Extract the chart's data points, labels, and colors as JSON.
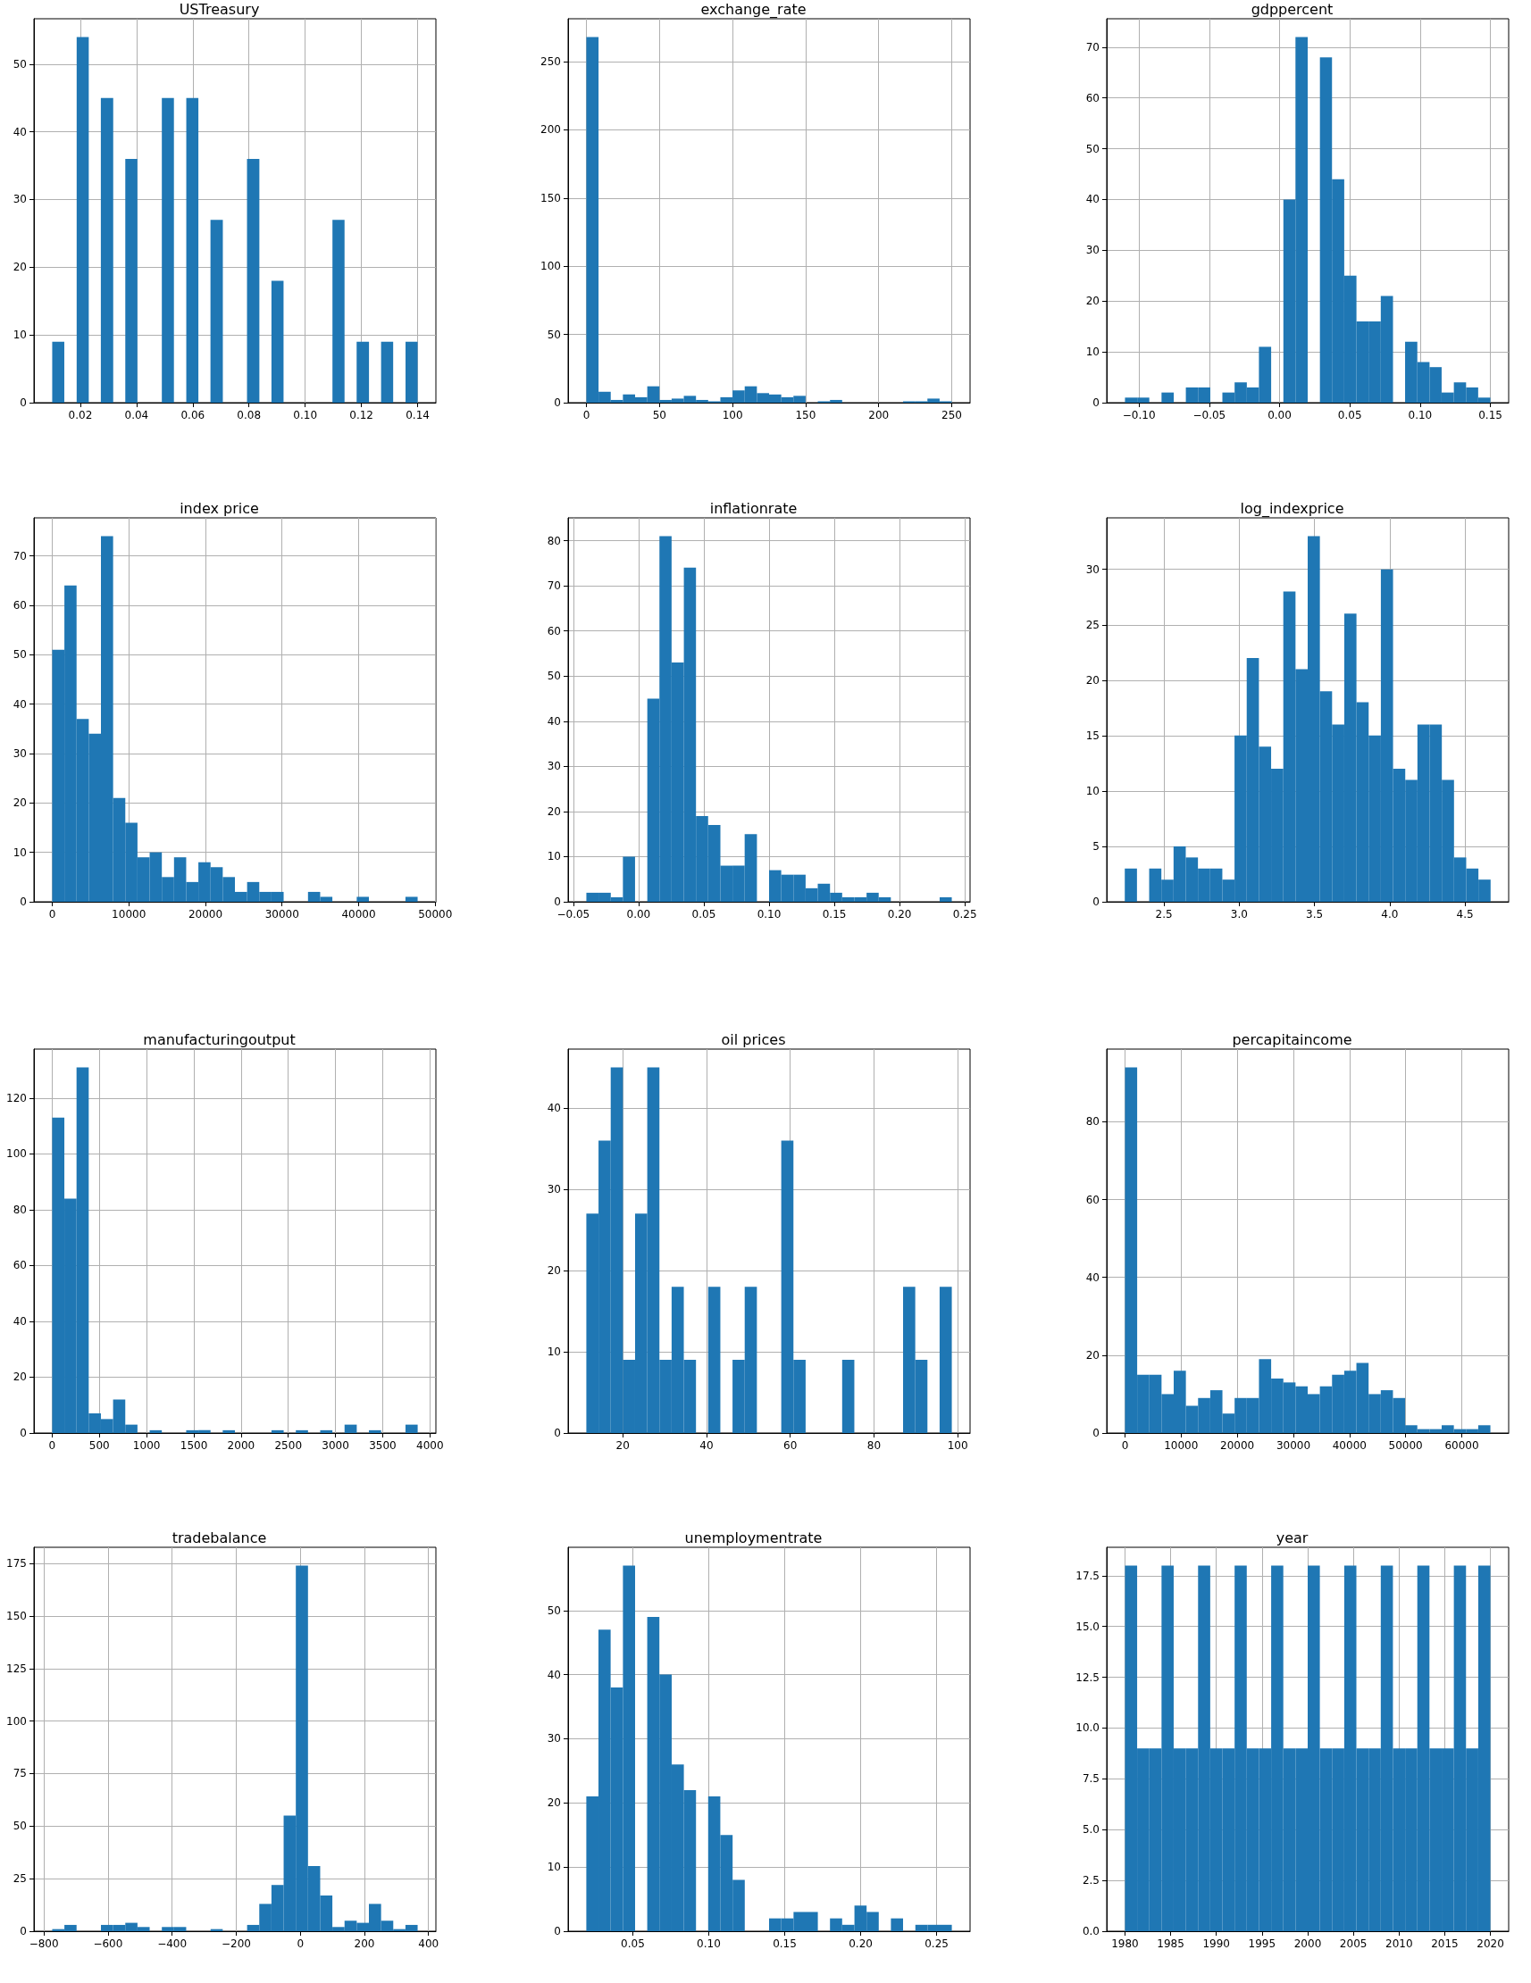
{
  "chart_data": [
    {
      "type": "histogram",
      "title": "USTreasury",
      "color": "#1f77b4",
      "grid": true,
      "bins": [
        0.01,
        0.0143,
        0.0187,
        0.023,
        0.0273,
        0.0317,
        0.036,
        0.0403,
        0.0447,
        0.049,
        0.0533,
        0.0577,
        0.062,
        0.0663,
        0.0707,
        0.075,
        0.0793,
        0.0837,
        0.088,
        0.0923,
        0.0967,
        0.101,
        0.1053,
        0.1097,
        0.114,
        0.1183,
        0.1227,
        0.127,
        0.1313,
        0.1357,
        0.14
      ],
      "values": [
        9,
        0,
        54,
        0,
        45,
        0,
        36,
        0,
        0,
        45,
        0,
        45,
        0,
        27,
        0,
        0,
        36,
        0,
        18,
        0,
        0,
        0,
        0,
        27,
        0,
        9,
        0,
        9,
        0,
        9
      ],
      "xlim": [
        0.0035,
        0.1465
      ],
      "xticks": [
        0.02,
        0.04,
        0.06,
        0.08,
        {
          "value": 0.1,
          "label": "0.10"
        },
        0.12,
        0.14
      ],
      "ylim": [
        0,
        56.7
      ],
      "yticks": [
        0,
        10,
        20,
        30,
        40,
        50
      ]
    },
    {
      "type": "histogram",
      "title": "exchange_rate",
      "color": "#1f77b4",
      "grid": true,
      "bins": [
        0,
        8.33,
        16.67,
        25,
        33.33,
        41.67,
        50,
        58.33,
        66.67,
        75,
        83.33,
        91.67,
        100,
        108.33,
        116.67,
        125,
        133.33,
        141.67,
        150,
        158.33,
        166.67,
        175,
        183.33,
        191.67,
        200,
        208.33,
        216.67,
        225,
        233.33,
        241.67,
        250
      ],
      "values": [
        268,
        8,
        2,
        6,
        4,
        12,
        2,
        3,
        5,
        2,
        1,
        4,
        9,
        12,
        7,
        6,
        4,
        5,
        0,
        1,
        2,
        0,
        0,
        0,
        0,
        0,
        1,
        1,
        3,
        1
      ],
      "xlim": [
        -12.5,
        262.5
      ],
      "xticks": [
        0,
        50,
        100,
        150,
        200,
        250
      ],
      "ylim": [
        0,
        281.4
      ],
      "yticks": [
        0,
        50,
        100,
        150,
        200,
        250
      ]
    },
    {
      "type": "histogram",
      "title": "gdppercent",
      "color": "#1f77b4",
      "grid": true,
      "bins": [
        -0.11,
        -0.1013,
        -0.0927,
        -0.084,
        -0.0753,
        -0.0667,
        -0.058,
        -0.0493,
        -0.0407,
        -0.032,
        -0.0233,
        -0.0147,
        -0.006,
        0.0027,
        0.0113,
        0.02,
        0.0287,
        0.0373,
        0.046,
        0.0547,
        0.0633,
        0.072,
        0.0807,
        0.0893,
        0.098,
        0.1067,
        0.1153,
        0.124,
        0.1327,
        0.1413,
        0.15
      ],
      "values": [
        1,
        1,
        0,
        2,
        0,
        3,
        3,
        0,
        2,
        4,
        3,
        11,
        0,
        40,
        72,
        0,
        68,
        44,
        25,
        16,
        16,
        21,
        0,
        12,
        8,
        7,
        2,
        4,
        3,
        1
      ],
      "xlim": [
        -0.123,
        0.163
      ],
      "xticks": [
        {
          "value": -0.1,
          "label": "−0.10"
        },
        {
          "value": -0.05,
          "label": "−0.05"
        },
        {
          "value": 0,
          "label": "0.00"
        },
        0.05,
        {
          "value": 0.1,
          "label": "0.10"
        },
        0.15
      ],
      "ylim": [
        0,
        75.6
      ],
      "yticks": [
        0,
        10,
        20,
        30,
        40,
        50,
        60,
        70
      ]
    },
    {
      "type": "histogram",
      "title": "index price",
      "color": "#1f77b4",
      "grid": true,
      "bins": [
        0,
        1590,
        3180,
        4770,
        6360,
        7950,
        9540,
        11130,
        12720,
        14310,
        15900,
        17490,
        19080,
        20670,
        22260,
        23850,
        25440,
        27030,
        28620,
        30210,
        31800,
        33390,
        34980,
        36570,
        38160,
        39750,
        41340,
        42930,
        44520,
        46110,
        47700
      ],
      "values": [
        51,
        64,
        37,
        34,
        74,
        21,
        16,
        9,
        10,
        5,
        9,
        4,
        8,
        7,
        5,
        2,
        4,
        2,
        2,
        0,
        0,
        2,
        1,
        0,
        0,
        1,
        0,
        0,
        0,
        1
      ],
      "xlim": [
        -2385,
        50085
      ],
      "xticks": [
        0,
        10000,
        20000,
        30000,
        40000,
        50000
      ],
      "ylim": [
        0,
        77.7
      ],
      "yticks": [
        0,
        10,
        20,
        30,
        40,
        50,
        60,
        70
      ]
    },
    {
      "type": "histogram",
      "title": "inflationrate",
      "color": "#1f77b4",
      "grid": true,
      "bins": [
        -0.04,
        -0.0307,
        -0.0213,
        -0.012,
        -0.0027,
        0.0067,
        0.016,
        0.0253,
        0.0347,
        0.044,
        0.0533,
        0.0627,
        0.072,
        0.0813,
        0.0907,
        0.1,
        0.1093,
        0.1187,
        0.128,
        0.1373,
        0.1467,
        0.156,
        0.1653,
        0.1747,
        0.184,
        0.1933,
        0.2027,
        0.212,
        0.2213,
        0.2307,
        0.24
      ],
      "values": [
        2,
        2,
        1,
        10,
        0,
        45,
        81,
        53,
        74,
        19,
        17,
        8,
        8,
        15,
        0,
        7,
        6,
        6,
        3,
        4,
        2,
        1,
        1,
        2,
        1,
        0,
        0,
        0,
        0,
        1
      ],
      "xlim": [
        -0.054,
        0.254
      ],
      "xticks": [
        {
          "value": -0.05,
          "label": "−0.05"
        },
        {
          "value": 0,
          "label": "0.00"
        },
        0.05,
        {
          "value": 0.1,
          "label": "0.10"
        },
        0.15,
        {
          "value": 0.2,
          "label": "0.20"
        },
        0.25
      ],
      "ylim": [
        0,
        85.05
      ],
      "yticks": [
        0,
        10,
        20,
        30,
        40,
        50,
        60,
        70,
        80
      ]
    },
    {
      "type": "histogram",
      "title": "log_indexprice",
      "color": "#1f77b4",
      "grid": true,
      "bins": [
        2.24,
        2.321,
        2.402,
        2.483,
        2.564,
        2.645,
        2.726,
        2.807,
        2.888,
        2.969,
        3.05,
        3.131,
        3.212,
        3.293,
        3.374,
        3.455,
        3.536,
        3.617,
        3.698,
        3.779,
        3.86,
        3.941,
        4.022,
        4.103,
        4.184,
        4.265,
        4.346,
        4.427,
        4.508,
        4.589,
        4.67
      ],
      "values": [
        3,
        0,
        3,
        2,
        5,
        4,
        3,
        3,
        2,
        15,
        22,
        14,
        12,
        28,
        21,
        33,
        19,
        16,
        26,
        18,
        15,
        30,
        12,
        11,
        16,
        16,
        11,
        4,
        3,
        2
      ],
      "xlim": [
        2.12,
        4.79
      ],
      "xticks": [
        2.5,
        {
          "value": 3,
          "label": "3.0"
        },
        3.5,
        {
          "value": 4,
          "label": "4.0"
        },
        4.5
      ],
      "ylim": [
        0,
        34.65
      ],
      "yticks": [
        0,
        5,
        10,
        15,
        20,
        25,
        30
      ]
    },
    {
      "type": "histogram",
      "title": "manufacturingoutput",
      "color": "#1f77b4",
      "grid": true,
      "bins": [
        0,
        129,
        258,
        387,
        516,
        645,
        774,
        903,
        1032,
        1161,
        1290,
        1419,
        1548,
        1677,
        1806,
        1935,
        2064,
        2193,
        2322,
        2451,
        2580,
        2709,
        2838,
        2967,
        3096,
        3225,
        3354,
        3483,
        3612,
        3741,
        3870
      ],
      "values": [
        113,
        84,
        131,
        7,
        5,
        12,
        3,
        0,
        1,
        0,
        0,
        1,
        1,
        0,
        1,
        0,
        0,
        0,
        1,
        0,
        1,
        0,
        1,
        0,
        3,
        0,
        1,
        0,
        0,
        3
      ],
      "xlim": [
        -193,
        4063
      ],
      "xticks": [
        0,
        500,
        1000,
        1500,
        2000,
        2500,
        3000,
        3500,
        4000
      ],
      "ylim": [
        0,
        137.55
      ],
      "yticks": [
        0,
        20,
        40,
        60,
        80,
        100,
        120
      ]
    },
    {
      "type": "histogram",
      "title": "oil prices",
      "color": "#1f77b4",
      "grid": true,
      "bins": [
        11.3,
        14.21,
        17.12,
        20.03,
        22.94,
        25.85,
        28.76,
        31.67,
        34.58,
        37.49,
        40.4,
        43.31,
        46.22,
        49.13,
        52.04,
        54.95,
        57.86,
        60.77,
        63.68,
        66.59,
        69.5,
        72.41,
        75.32,
        78.23,
        81.14,
        84.05,
        86.96,
        89.87,
        92.78,
        95.69,
        98.6
      ],
      "values": [
        27,
        36,
        45,
        9,
        27,
        45,
        9,
        18,
        9,
        0,
        18,
        0,
        9,
        18,
        0,
        0,
        36,
        9,
        0,
        0,
        0,
        9,
        0,
        0,
        0,
        0,
        18,
        9,
        0,
        18
      ],
      "xlim": [
        6.94,
        102.96
      ],
      "xticks": [
        20,
        40,
        60,
        80,
        100
      ],
      "ylim": [
        0,
        47.25
      ],
      "yticks": [
        0,
        10,
        20,
        30,
        40
      ]
    },
    {
      "type": "histogram",
      "title": "percapitaincome",
      "color": "#1f77b4",
      "grid": true,
      "bins": [
        0,
        2170,
        4340,
        6510,
        8680,
        10850,
        13020,
        15190,
        17360,
        19530,
        21700,
        23870,
        26040,
        28210,
        30380,
        32550,
        34720,
        36890,
        39060,
        41230,
        43400,
        45570,
        47740,
        49910,
        52080,
        54250,
        56420,
        58590,
        60760,
        62930,
        65100
      ],
      "values": [
        94,
        15,
        15,
        10,
        16,
        7,
        9,
        11,
        5,
        9,
        9,
        19,
        14,
        13,
        12,
        10,
        12,
        15,
        16,
        18,
        10,
        11,
        9,
        2,
        1,
        1,
        2,
        1,
        1,
        2
      ],
      "xlim": [
        -3255,
        68355
      ],
      "xticks": [
        0,
        10000,
        20000,
        30000,
        40000,
        50000,
        60000
      ],
      "ylim": [
        0,
        98.7
      ],
      "yticks": [
        0,
        20,
        40,
        60,
        80
      ]
    },
    {
      "type": "histogram",
      "title": "tradebalance",
      "color": "#1f77b4",
      "grid": true,
      "bins": [
        -774,
        -736,
        -698,
        -660,
        -622,
        -584,
        -546,
        -508,
        -470,
        -432,
        -394,
        -356,
        -318,
        -280,
        -242,
        -204,
        -166,
        -128,
        -90,
        -52,
        -14,
        24,
        62,
        100,
        138,
        176,
        214,
        252,
        290,
        328,
        366
      ],
      "values": [
        1,
        3,
        0,
        0,
        3,
        3,
        4,
        2,
        0,
        2,
        2,
        0,
        0,
        1,
        0,
        0,
        3,
        13,
        22,
        55,
        174,
        31,
        17,
        2,
        5,
        4,
        13,
        5,
        1,
        3
      ],
      "xlim": [
        -831,
        423
      ],
      "xticks": [
        {
          "value": -800,
          "label": "−800"
        },
        {
          "value": -600,
          "label": "−600"
        },
        {
          "value": -400,
          "label": "−400"
        },
        {
          "value": -200,
          "label": "−200"
        },
        0,
        200,
        400
      ],
      "ylim": [
        0,
        182.7
      ],
      "yticks": [
        0,
        25,
        50,
        75,
        100,
        125,
        150,
        175
      ]
    },
    {
      "type": "histogram",
      "title": "unemploymentrate",
      "color": "#1f77b4",
      "grid": true,
      "bins": [
        0.0194,
        0.0274,
        0.0354,
        0.0435,
        0.0515,
        0.0595,
        0.0675,
        0.0756,
        0.0836,
        0.0916,
        0.0996,
        0.1076,
        0.1157,
        0.1237,
        0.1317,
        0.1397,
        0.1477,
        0.1558,
        0.1638,
        0.1718,
        0.1798,
        0.1878,
        0.1959,
        0.2039,
        0.2119,
        0.2199,
        0.2279,
        0.236,
        0.244,
        0.252,
        0.26
      ],
      "values": [
        21,
        47,
        38,
        57,
        0,
        49,
        40,
        26,
        22,
        0,
        21,
        15,
        8,
        0,
        0,
        2,
        2,
        3,
        3,
        0,
        2,
        1,
        4,
        3,
        0,
        2,
        0,
        1,
        1,
        1
      ],
      "xlim": [
        0.0074,
        0.272
      ],
      "xticks": [
        0.05,
        {
          "value": 0.1,
          "label": "0.10"
        },
        0.15,
        {
          "value": 0.2,
          "label": "0.20"
        },
        0.25
      ],
      "ylim": [
        0,
        59.85
      ],
      "yticks": [
        0,
        10,
        20,
        30,
        40,
        50
      ]
    },
    {
      "type": "histogram",
      "title": "year",
      "color": "#1f77b4",
      "grid": true,
      "bins": [
        1980,
        1981.33,
        1982.67,
        1984,
        1985.33,
        1986.67,
        1988,
        1989.33,
        1990.67,
        1992,
        1993.33,
        1994.67,
        1996,
        1997.33,
        1998.67,
        2000,
        2001.33,
        2002.67,
        2004,
        2005.33,
        2006.67,
        2008,
        2009.33,
        2010.67,
        2012,
        2013.33,
        2014.67,
        2016,
        2017.33,
        2018.67,
        2020
      ],
      "values": [
        18,
        9,
        9,
        18,
        9,
        9,
        18,
        9,
        9,
        18,
        9,
        9,
        18,
        9,
        9,
        18,
        9,
        9,
        18,
        9,
        9,
        18,
        9,
        9,
        18,
        9,
        9,
        18,
        9,
        18
      ],
      "xlim": [
        1978,
        2022
      ],
      "xticks": [
        1980,
        1985,
        1990,
        1995,
        2000,
        2005,
        2010,
        2015,
        2020
      ],
      "ylim": [
        0,
        18.9
      ],
      "yticks": [
        {
          "value": 0,
          "label": "0.0"
        },
        2.5,
        {
          "value": 5,
          "label": "5.0"
        },
        7.5,
        {
          "value": 10,
          "label": "10.0"
        },
        12.5,
        {
          "value": 15,
          "label": "15.0"
        },
        17.5
      ]
    }
  ]
}
